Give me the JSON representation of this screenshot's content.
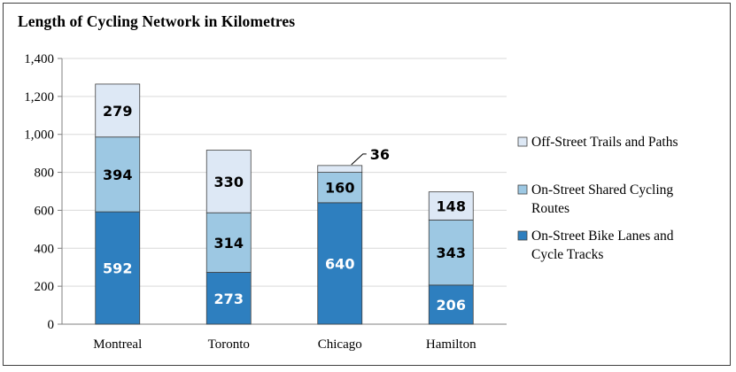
{
  "chart_data": {
    "type": "bar",
    "stacked": true,
    "title": "Length of Cycling Network in Kilometres",
    "categories": [
      "Montreal",
      "Toronto",
      "Chicago",
      "Hamilton"
    ],
    "series": [
      {
        "name": "On-Street Bike Lanes and Cycle Tracks",
        "values": [
          592,
          273,
          640,
          206
        ],
        "color": "#2e7fbf",
        "label_color": "#ffffff"
      },
      {
        "name": "On-Street Shared Cycling Routes",
        "values": [
          394,
          314,
          160,
          343
        ],
        "color": "#9dc8e3",
        "label_color": "#000000"
      },
      {
        "name": "Off-Street Trails and Paths",
        "values": [
          279,
          330,
          36,
          148
        ],
        "color": "#dde8f5",
        "label_color": "#000000"
      }
    ],
    "ylim": [
      0,
      1400
    ],
    "yticks": [
      0,
      200,
      400,
      600,
      800,
      1000,
      1200,
      1400
    ],
    "ytick_labels": [
      "0",
      "200",
      "400",
      "600",
      "800",
      "1,000",
      "1,200",
      "1,400"
    ],
    "grid": true,
    "legend_position": "right",
    "legend": [
      {
        "lines": [
          "Off-Street Trails and Paths"
        ],
        "series": 2
      },
      {
        "lines": [
          "On-Street Shared Cycling",
          "Routes"
        ],
        "series": 1
      },
      {
        "lines": [
          "On-Street Bike Lanes and",
          "Cycle Tracks"
        ],
        "series": 0
      }
    ],
    "outside_labels": [
      {
        "category": 2,
        "series": 2,
        "text": "36"
      }
    ],
    "colors": {
      "axis": "#808080",
      "grid": "#d9d9d9",
      "bar_border": "#404040"
    }
  }
}
